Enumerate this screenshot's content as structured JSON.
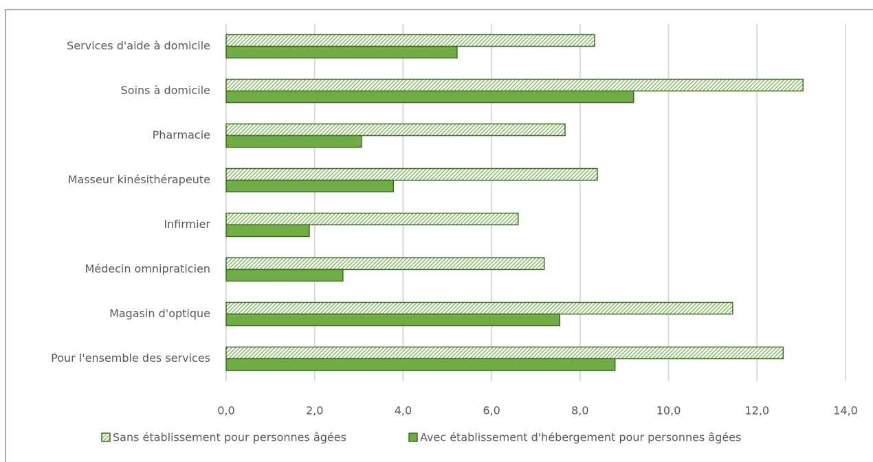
{
  "chart_data": {
    "type": "bar",
    "orientation": "horizontal",
    "categories": [
      "Services d'aide à domicile",
      "Soins à domicile",
      "Pharmacie",
      "Masseur kinésithérapeute",
      "Infirmier",
      "Médecin omnipraticien",
      "Magasin d'optique",
      "Pour l'ensemble des services"
    ],
    "series": [
      {
        "name": "Sans établissement pour personnes âgées",
        "color": "#70ad47",
        "pattern": "hatch",
        "values": [
          8.33,
          13.04,
          7.66,
          8.39,
          6.6,
          7.19,
          11.45,
          12.59
        ]
      },
      {
        "name": "Avec établissement d'hébergement pour personnes âgées",
        "color": "#70ad47",
        "pattern": "solid",
        "values": [
          5.22,
          9.21,
          3.06,
          3.78,
          1.88,
          2.64,
          7.54,
          8.79
        ]
      }
    ],
    "xlim": [
      0,
      14
    ],
    "xticks": [
      {
        "value": 0,
        "label": "0,0"
      },
      {
        "value": 2,
        "label": "2,0"
      },
      {
        "value": 4,
        "label": "4,0"
      },
      {
        "value": 6,
        "label": "6,0"
      },
      {
        "value": 8,
        "label": "8,0"
      },
      {
        "value": 10,
        "label": "10,0"
      },
      {
        "value": 12,
        "label": "12,0"
      },
      {
        "value": 14,
        "label": "14,0"
      }
    ],
    "grid": true,
    "legend": "bottom"
  }
}
